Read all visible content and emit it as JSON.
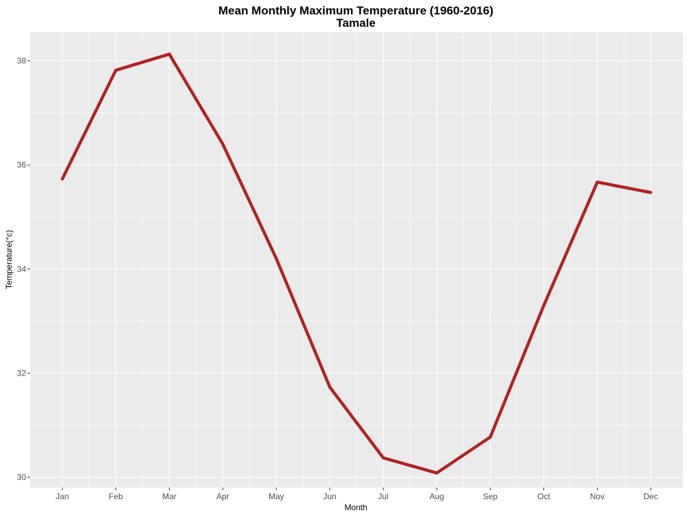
{
  "chart_data": {
    "type": "line",
    "title": "Mean Monthly Maximum Temperature (1960-2016)",
    "subtitle": "Tamale",
    "xlabel": "Month",
    "ylabel": "Temperature(°c)",
    "categories": [
      "Jan",
      "Feb",
      "Mar",
      "Apr",
      "May",
      "Jun",
      "Jul",
      "Aug",
      "Sep",
      "Oct",
      "Nov",
      "Dec"
    ],
    "series": [
      {
        "values": [
          35.73,
          37.82,
          38.13,
          36.4,
          34.2,
          31.73,
          30.37,
          30.08,
          30.77,
          33.3,
          35.67,
          35.47
        ],
        "color": "#b22222"
      }
    ],
    "ylim": [
      29.8,
      38.55
    ],
    "yticks": [
      30,
      32,
      34,
      36,
      38
    ],
    "grid": true,
    "panel_background": "#ebebeb",
    "grid_color": "#ffffff",
    "legend": "none"
  }
}
